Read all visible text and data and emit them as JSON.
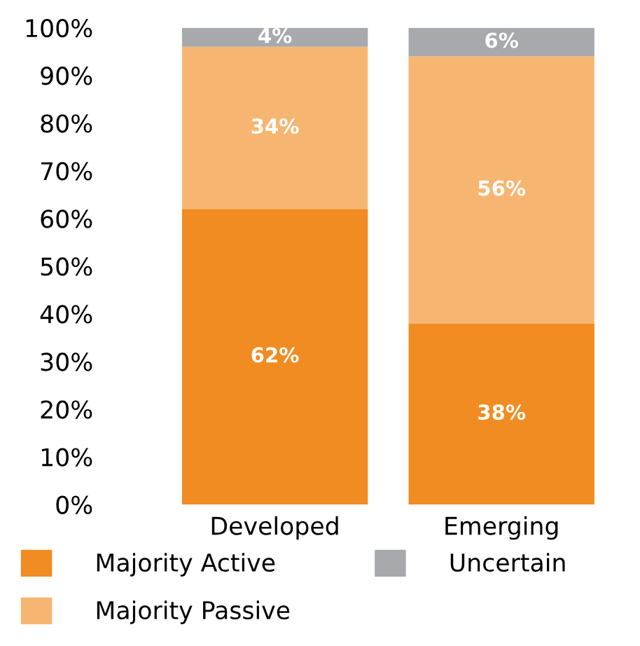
{
  "chart_data": {
    "type": "bar",
    "stacked": true,
    "categories": [
      "Developed",
      "Emerging"
    ],
    "series": [
      {
        "name": "Majority Active",
        "color": "#f08c21",
        "values": [
          62,
          38
        ],
        "value_labels": [
          "62%",
          "38%"
        ]
      },
      {
        "name": "Majority Passive",
        "color": "#f6b672",
        "values": [
          34,
          56
        ],
        "value_labels": [
          "34%",
          "56%"
        ]
      },
      {
        "name": "Uncertain",
        "color": "#a7a9ac",
        "values": [
          4,
          6
        ],
        "value_labels": [
          "4%",
          "6%"
        ]
      }
    ],
    "ylim": [
      0,
      100
    ],
    "yticks": [
      {
        "value": 0,
        "label": "0%"
      },
      {
        "value": 10,
        "label": "10%"
      },
      {
        "value": 20,
        "label": "20%"
      },
      {
        "value": 30,
        "label": "30%"
      },
      {
        "value": 40,
        "label": "40%"
      },
      {
        "value": 50,
        "label": "50%"
      },
      {
        "value": 60,
        "label": "60%"
      },
      {
        "value": 70,
        "label": "70%"
      },
      {
        "value": 80,
        "label": "80%"
      },
      {
        "value": 90,
        "label": "90%"
      },
      {
        "value": 100,
        "label": "100%"
      }
    ],
    "grid": false,
    "legend": "bottom"
  }
}
